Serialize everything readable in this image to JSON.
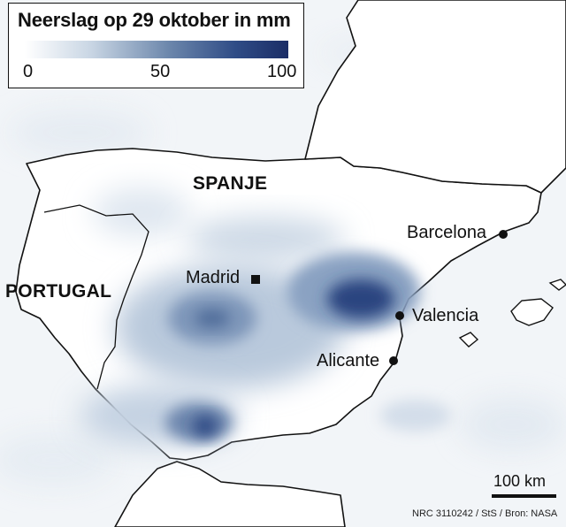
{
  "legend": {
    "title": "Neerslag op 29 oktober in mm",
    "ticks": [
      "0",
      "50",
      "100"
    ],
    "color_min": "#ffffff",
    "color_max": "#1b2d66"
  },
  "labels": {
    "spain": "SPANJE",
    "portugal": "PORTUGAL"
  },
  "cities": {
    "madrid": "Madrid",
    "barcelona": "Barcelona",
    "valencia": "Valencia",
    "alicante": "Alicante"
  },
  "city_marker_shapes": {
    "madrid": "square",
    "others": "circle"
  },
  "scale": {
    "label": "100 km"
  },
  "credit": "NRC 3110242 / StS / Bron: NASA",
  "colors": {
    "sea_background": "#f2f5f8",
    "land": "#ffffff",
    "coastline": "#111111",
    "rain_light": "#c9d6e4",
    "rain_heavy": "#1b2d66"
  }
}
